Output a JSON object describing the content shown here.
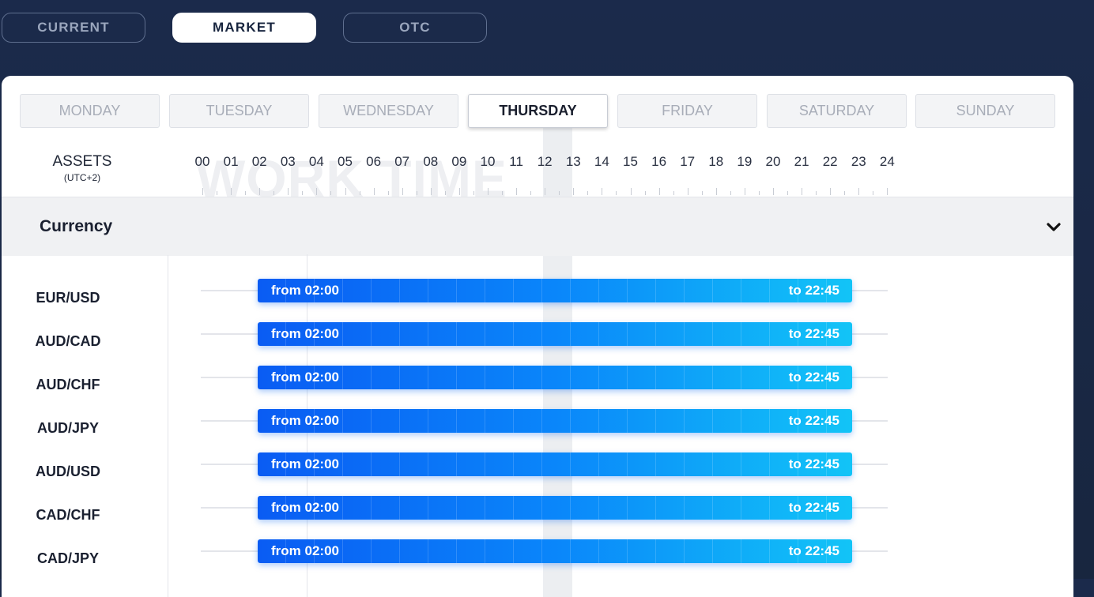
{
  "mode_tabs": [
    {
      "label": "CURRENT",
      "active": false
    },
    {
      "label": "MARKET",
      "active": true
    },
    {
      "label": "OTC",
      "active": false
    }
  ],
  "days": [
    {
      "label": "MONDAY",
      "active": false
    },
    {
      "label": "TUESDAY",
      "active": false
    },
    {
      "label": "WEDNESDAY",
      "active": false
    },
    {
      "label": "THURSDAY",
      "active": true
    },
    {
      "label": "FRIDAY",
      "active": false
    },
    {
      "label": "SATURDAY",
      "active": false
    },
    {
      "label": "SUNDAY",
      "active": false
    }
  ],
  "assets_header": {
    "title": "ASSETS",
    "timezone": "(UTC+2)"
  },
  "watermark": "WORK TIME",
  "hours": [
    "00",
    "01",
    "02",
    "03",
    "04",
    "05",
    "06",
    "07",
    "08",
    "09",
    "10",
    "11",
    "12",
    "13",
    "14",
    "15",
    "16",
    "17",
    "18",
    "19",
    "20",
    "21",
    "22",
    "23",
    "24"
  ],
  "section": {
    "title": "Currency",
    "toggle_icon": "chevron-down-icon"
  },
  "assets": [
    {
      "name": "EUR/USD",
      "from": "from 02:00",
      "to": "to 22:45"
    },
    {
      "name": "AUD/CAD",
      "from": "from 02:00",
      "to": "to 22:45"
    },
    {
      "name": "AUD/CHF",
      "from": "from 02:00",
      "to": "to 22:45"
    },
    {
      "name": "AUD/JPY",
      "from": "from 02:00",
      "to": "to 22:45"
    },
    {
      "name": "AUD/USD",
      "from": "from 02:00",
      "to": "to 22:45"
    },
    {
      "name": "CAD/CHF",
      "from": "from 02:00",
      "to": "to 22:45"
    },
    {
      "name": "CAD/JPY",
      "from": "from 02:00",
      "to": "to 22:45"
    }
  ],
  "colors": {
    "accent_start": "#0a5cf3",
    "accent_end": "#12c4f7",
    "background": "#1b2a4b"
  }
}
